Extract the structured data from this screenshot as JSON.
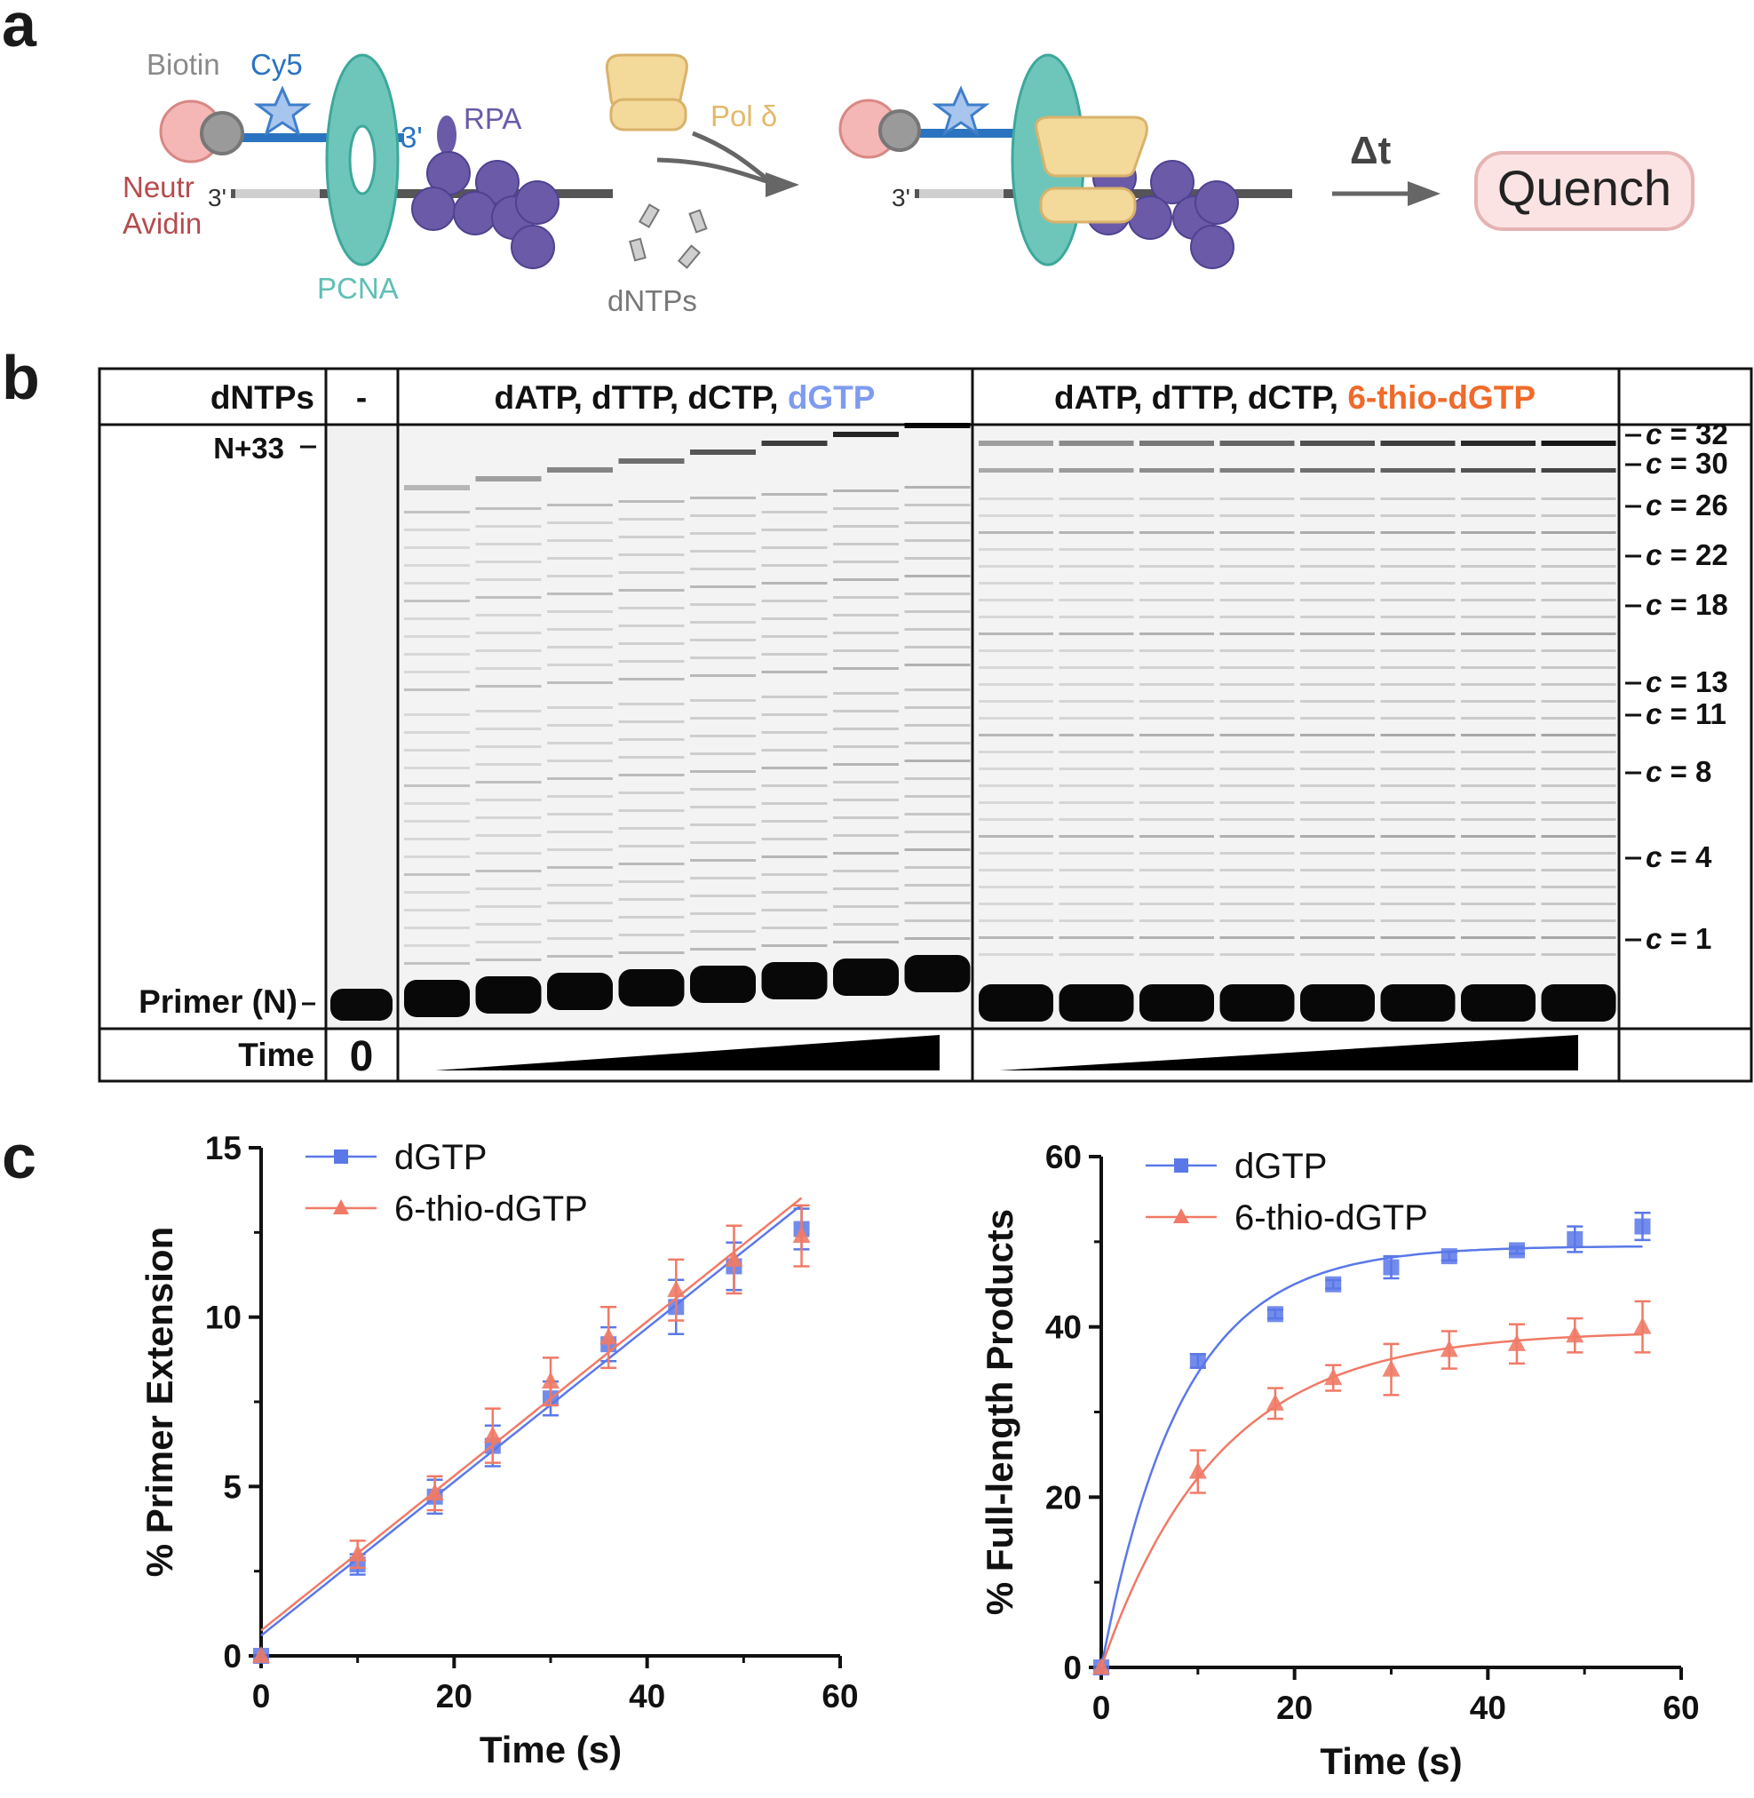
{
  "panels": {
    "a": "a",
    "b": "b",
    "c": "c"
  },
  "schematic": {
    "biotin": "Biotin",
    "cy5": "Cy5",
    "prime3_top": "3'",
    "rpa": "RPA",
    "neutr_line1": "Neutr",
    "neutr_line2": "Avidin",
    "prime3_bottom": "3'",
    "pcna": "PCNA",
    "pol_delta": "Pol δ",
    "dntps": "dNTPs",
    "prime3_right": "3'",
    "delta_t": "Δt",
    "quench": "Quench",
    "colors": {
      "biotin_gray": "#8a8a8a",
      "cy5_blue": "#2a73c0",
      "rpa_purple": "#6a5aa8",
      "neutravidin_red": "#b64b4f",
      "pcna_teal": "#5fc0b5",
      "pol_yellow": "#e8c87a",
      "quench_fill": "#fbe3e3"
    }
  },
  "gel": {
    "header_dntps": "dNTPs",
    "header_minus": "-",
    "header_left_prefix": "dATP, dTTP, dCTP, ",
    "header_left_highlight": "dGTP",
    "header_right_prefix": "dATP, dTTP, dCTP, ",
    "header_right_highlight": "6-thio-dGTP",
    "label_top": "N+33",
    "label_primer": "Primer (N)",
    "time_label": "Time",
    "time_zero": "0",
    "c_labels": [
      "c = 32",
      "c = 30",
      "c = 26",
      "c = 22",
      "c = 18",
      "c = 13",
      "c = 11",
      "c = 8",
      "c = 4",
      "c = 1"
    ],
    "colors": {
      "dgtp_blue": "#7f9bf0",
      "thio_orange": "#f06a2a"
    }
  },
  "charts": [
    {
      "ylabel": "% Primer Extension",
      "xlabel": "Time (s)",
      "chart_data": {
        "type": "line",
        "xlim": [
          0,
          60
        ],
        "ylim": [
          0,
          15
        ],
        "xticks": [
          0,
          20,
          40,
          60
        ],
        "yticks": [
          0,
          5,
          10,
          15
        ],
        "x": [
          0,
          10,
          18,
          24,
          30,
          36,
          43,
          49,
          56
        ],
        "series": [
          {
            "name": "dGTP",
            "color": "#5a78e8",
            "marker": "square",
            "values": [
              0,
              2.7,
              4.7,
              6.2,
              7.6,
              9.2,
              10.3,
              11.5,
              12.6
            ],
            "errors": [
              0,
              0.3,
              0.5,
              0.6,
              0.5,
              0.5,
              0.8,
              0.7,
              0.6
            ],
            "fit": {
              "kind": "linear",
              "intercept": 0.6,
              "slope": 0.227
            }
          },
          {
            "name": "6-thio-dGTP",
            "color": "#f07a66",
            "marker": "triangle",
            "values": [
              0,
              3.0,
              4.8,
              6.5,
              8.1,
              9.4,
              10.8,
              11.7,
              12.4
            ],
            "errors": [
              0,
              0.4,
              0.5,
              0.8,
              0.7,
              0.9,
              0.9,
              1.0,
              0.9
            ],
            "fit": {
              "kind": "linear",
              "intercept": 0.75,
              "slope": 0.228
            }
          }
        ],
        "legend": "top-left"
      }
    },
    {
      "ylabel": "% Full-length Products",
      "xlabel": "Time (s)",
      "chart_data": {
        "type": "line",
        "xlim": [
          0,
          60
        ],
        "ylim": [
          0,
          60
        ],
        "xticks": [
          0,
          20,
          40,
          60
        ],
        "yticks": [
          0,
          20,
          40,
          60
        ],
        "x": [
          0,
          10,
          18,
          24,
          30,
          36,
          43,
          49,
          56
        ],
        "series": [
          {
            "name": "dGTP",
            "color": "#5a78e8",
            "marker": "square",
            "values": [
              0,
              36.0,
              41.5,
              45.0,
              47.0,
              48.3,
              49.0,
              50.3,
              51.8
            ],
            "errors": [
              0,
              0.8,
              0.5,
              0.5,
              1.3,
              0.5,
              0.4,
              1.5,
              1.6
            ],
            "fit": {
              "kind": "exponential",
              "plateau": 49.5,
              "k": 0.12
            }
          },
          {
            "name": "6-thio-dGTP",
            "color": "#f07a66",
            "marker": "triangle",
            "values": [
              0,
              23.0,
              31.0,
              34.0,
              35.0,
              37.3,
              38.0,
              39.0,
              40.0
            ],
            "errors": [
              0,
              2.5,
              1.8,
              1.5,
              3.0,
              2.2,
              2.3,
              2.0,
              3.0
            ],
            "fit": {
              "kind": "exponential",
              "plateau": 39.5,
              "k": 0.083
            }
          }
        ],
        "legend": "top-left"
      }
    }
  ]
}
